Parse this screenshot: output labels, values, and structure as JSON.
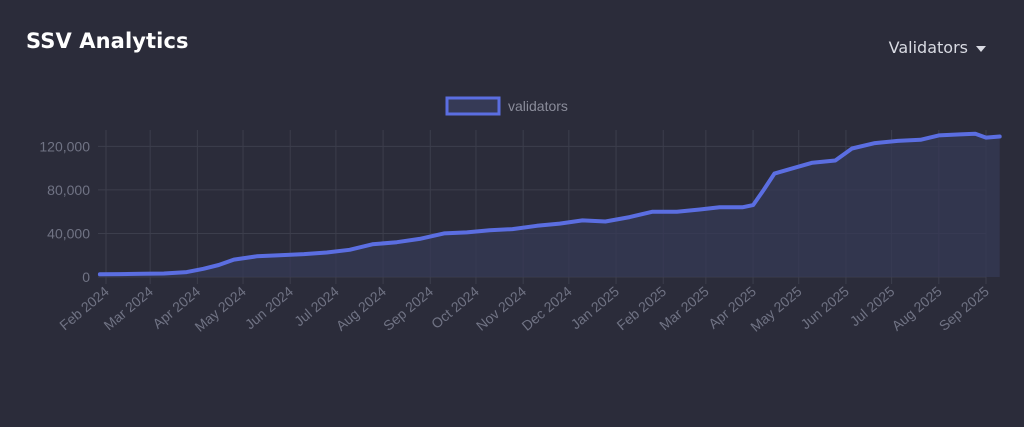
{
  "header": {
    "title": "SSV Analytics",
    "dropdown_label": "Validators"
  },
  "colors": {
    "background": "#2b2c3a",
    "line": "#5b6ee1",
    "fill": "#363a56",
    "grid": "#3c3e4c"
  },
  "chart_data": {
    "type": "area",
    "title": "",
    "xlabel": "",
    "ylabel": "",
    "legend": {
      "position": "top-center",
      "entries": [
        "validators"
      ]
    },
    "grid": true,
    "ylim": [
      0,
      135000
    ],
    "y_ticks": [
      "0",
      "40,000",
      "80,000",
      "120,000"
    ],
    "y_tick_values": [
      0,
      40000,
      80000,
      120000
    ],
    "x_ticks": [
      "Feb 2024",
      "Mar 2024",
      "Apr 2024",
      "May 2024",
      "Jun 2024",
      "Jul 2024",
      "Aug 2024",
      "Sep 2024",
      "Oct 2024",
      "Nov 2024",
      "Dec 2024",
      "Jan 2025",
      "Feb 2025",
      "Mar 2025",
      "Apr 2025",
      "May 2025",
      "Jun 2025",
      "Jul 2025",
      "Aug 2025",
      "Sep 2025"
    ],
    "series": [
      {
        "name": "validators",
        "x": [
          "2024-01-28",
          "2024-02-10",
          "2024-02-25",
          "2024-03-10",
          "2024-03-25",
          "2024-04-05",
          "2024-04-15",
          "2024-04-25",
          "2024-05-10",
          "2024-05-25",
          "2024-06-10",
          "2024-06-25",
          "2024-07-10",
          "2024-07-25",
          "2024-08-10",
          "2024-08-25",
          "2024-09-10",
          "2024-09-25",
          "2024-10-10",
          "2024-10-25",
          "2024-11-10",
          "2024-11-25",
          "2024-12-10",
          "2024-12-25",
          "2025-01-10",
          "2025-01-25",
          "2025-02-10",
          "2025-02-25",
          "2025-03-10",
          "2025-03-25",
          "2025-04-01",
          "2025-04-08",
          "2025-04-15",
          "2025-04-25",
          "2025-05-10",
          "2025-05-25",
          "2025-06-05",
          "2025-06-20",
          "2025-07-05",
          "2025-07-20",
          "2025-08-01",
          "2025-08-15",
          "2025-08-25",
          "2025-09-01",
          "2025-09-10"
        ],
        "values": [
          2500,
          2700,
          3000,
          3200,
          4500,
          7500,
          11000,
          16000,
          19000,
          20000,
          21000,
          22500,
          25000,
          30000,
          32000,
          35000,
          40000,
          41000,
          43000,
          44000,
          47000,
          49000,
          52000,
          51000,
          55000,
          60000,
          60000,
          62000,
          64000,
          64000,
          66000,
          80000,
          95000,
          99000,
          105000,
          107000,
          118000,
          123000,
          125000,
          126000,
          130000,
          131000,
          131500,
          128000,
          129000
        ]
      }
    ]
  }
}
